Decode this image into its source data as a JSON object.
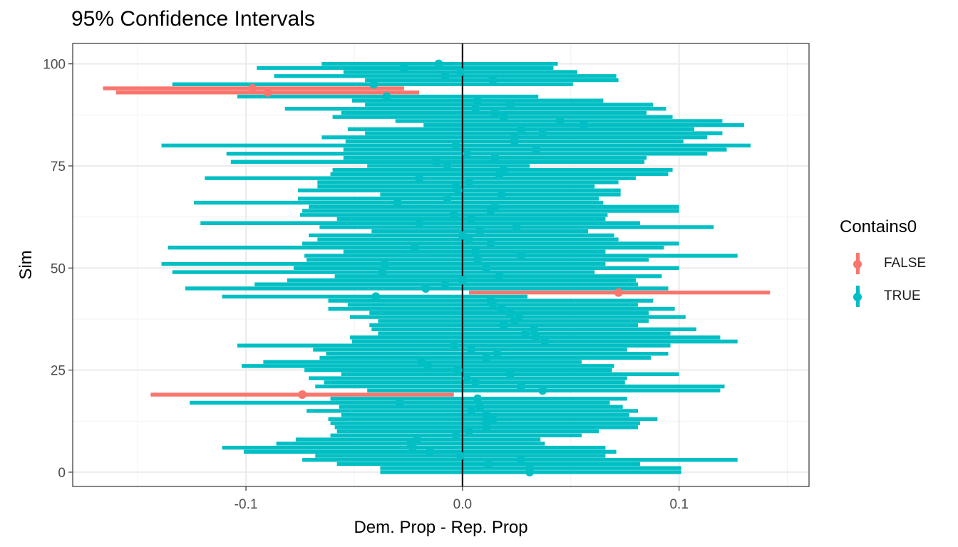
{
  "chart_data": {
    "type": "errorbar",
    "title": "95% Confidence Intervals",
    "xlabel": "Dem. Prop - Rep. Prop",
    "ylabel": "Sim",
    "xlim": [
      -0.18,
      0.16
    ],
    "ylim": [
      -3.5,
      105
    ],
    "x_ticks": [
      -0.1,
      0.0,
      0.1
    ],
    "x_tick_labels": [
      "-0.1",
      "0.0",
      "0.1"
    ],
    "y_ticks": [
      0,
      25,
      50,
      75,
      100
    ],
    "y_tick_labels": [
      "0",
      "25",
      "50",
      "75",
      "100"
    ],
    "vline_x": 0,
    "grid": true,
    "legend": {
      "title": "Contains0",
      "position": "right",
      "entries": [
        {
          "label": "FALSE",
          "color": "#F8766D"
        },
        {
          "label": "TRUE",
          "color": "#00BFC4"
        }
      ]
    },
    "colors": {
      "FALSE": "#F8766D",
      "TRUE": "#00BFC4"
    },
    "series": [
      {
        "name": "FALSE",
        "sims": [
          19,
          44,
          93,
          94
        ],
        "lower": [
          -0.144,
          0.003,
          -0.16,
          -0.166
        ],
        "upper": [
          -0.004,
          0.142,
          -0.02,
          -0.027
        ],
        "estimate": [
          -0.074,
          0.072,
          -0.09,
          -0.097
        ]
      },
      {
        "name": "TRUE",
        "sims": [
          0,
          1,
          2,
          3,
          4,
          5,
          6,
          7,
          8,
          9,
          10,
          11,
          12,
          13,
          14,
          15,
          16,
          17,
          18,
          20,
          21,
          22,
          23,
          24,
          25,
          26,
          27,
          28,
          29,
          30,
          31,
          32,
          33,
          34,
          35,
          36,
          37,
          38,
          39,
          40,
          41,
          42,
          43,
          45,
          46,
          47,
          48,
          49,
          50,
          51,
          52,
          53,
          54,
          55,
          56,
          57,
          58,
          59,
          60,
          61,
          62,
          63,
          64,
          65,
          66,
          67,
          68,
          69,
          70,
          71,
          72,
          73,
          74,
          75,
          76,
          77,
          78,
          79,
          80,
          81,
          82,
          83,
          84,
          85,
          86,
          87,
          88,
          89,
          90,
          91,
          92,
          95,
          96,
          97,
          98,
          99,
          100
        ],
        "lower": [
          -0.038,
          -0.038,
          -0.058,
          -0.074,
          -0.068,
          -0.101,
          -0.111,
          -0.086,
          -0.077,
          -0.061,
          -0.058,
          -0.059,
          -0.061,
          -0.062,
          -0.056,
          -0.072,
          -0.057,
          -0.126,
          -0.061,
          -0.044,
          -0.068,
          -0.064,
          -0.071,
          -0.056,
          -0.073,
          -0.102,
          -0.092,
          -0.066,
          -0.063,
          -0.069,
          -0.104,
          -0.051,
          -0.052,
          -0.039,
          -0.042,
          -0.043,
          -0.039,
          -0.052,
          -0.043,
          -0.062,
          -0.053,
          -0.062,
          -0.111,
          -0.128,
          -0.096,
          -0.081,
          -0.059,
          -0.134,
          -0.078,
          -0.139,
          -0.072,
          -0.073,
          -0.055,
          -0.136,
          -0.074,
          -0.067,
          -0.071,
          -0.042,
          -0.066,
          -0.121,
          -0.058,
          -0.075,
          -0.074,
          -0.071,
          -0.124,
          -0.076,
          -0.038,
          -0.076,
          -0.067,
          -0.067,
          -0.119,
          -0.061,
          -0.06,
          -0.044,
          -0.107,
          -0.055,
          -0.109,
          -0.055,
          -0.139,
          -0.054,
          -0.065,
          -0.045,
          -0.053,
          -0.018,
          -0.031,
          -0.06,
          -0.056,
          -0.082,
          -0.045,
          -0.051,
          -0.104,
          -0.134,
          -0.045,
          -0.087,
          -0.055,
          -0.095,
          -0.065
        ],
        "upper": [
          0.101,
          0.101,
          0.082,
          0.127,
          0.066,
          0.071,
          0.066,
          0.038,
          0.036,
          0.055,
          0.063,
          0.081,
          0.082,
          0.09,
          0.077,
          0.081,
          0.074,
          0.068,
          0.076,
          0.119,
          0.121,
          0.075,
          0.076,
          0.1,
          0.069,
          0.07,
          0.055,
          0.087,
          0.095,
          0.076,
          0.096,
          0.127,
          0.119,
          0.096,
          0.108,
          0.081,
          0.086,
          0.103,
          0.086,
          0.098,
          0.081,
          0.088,
          0.03,
          0.095,
          0.081,
          0.08,
          0.092,
          0.061,
          0.1,
          0.066,
          0.086,
          0.127,
          0.066,
          0.093,
          0.1,
          0.072,
          0.07,
          0.058,
          0.116,
          0.082,
          0.066,
          0.067,
          0.1,
          0.1,
          0.065,
          0.063,
          0.073,
          0.073,
          0.061,
          0.072,
          0.08,
          0.095,
          0.097,
          0.031,
          0.084,
          0.085,
          0.113,
          0.122,
          0.133,
          0.102,
          0.113,
          0.12,
          0.107,
          0.13,
          0.12,
          0.097,
          0.085,
          0.094,
          0.088,
          0.065,
          0.035,
          0.051,
          0.072,
          0.071,
          0.053,
          0.042,
          0.044
        ],
        "estimate": [
          0.031,
          0.031,
          0.012,
          0.027,
          -0.001,
          -0.015,
          -0.023,
          -0.024,
          -0.021,
          -0.003,
          0.003,
          0.011,
          0.011,
          0.014,
          0.011,
          0.004,
          0.008,
          -0.029,
          0.007,
          0.037,
          0.027,
          0.006,
          0.002,
          0.022,
          -0.002,
          -0.016,
          -0.019,
          0.011,
          0.016,
          0.004,
          -0.004,
          0.038,
          0.034,
          0.029,
          0.033,
          0.019,
          0.024,
          0.026,
          0.022,
          0.018,
          0.014,
          0.013,
          -0.04,
          -0.017,
          -0.008,
          0.0,
          0.017,
          -0.037,
          0.011,
          -0.036,
          0.007,
          0.027,
          0.006,
          -0.022,
          0.013,
          0.003,
          0.0,
          0.008,
          0.025,
          -0.02,
          0.004,
          -0.004,
          0.013,
          0.015,
          -0.03,
          -0.007,
          0.018,
          -0.002,
          -0.003,
          0.003,
          -0.02,
          0.017,
          0.019,
          -0.007,
          -0.012,
          0.015,
          0.002,
          0.034,
          -0.003,
          0.024,
          0.024,
          0.037,
          0.027,
          0.056,
          0.045,
          0.019,
          0.015,
          0.006,
          0.022,
          0.007,
          -0.035,
          -0.041,
          0.014,
          -0.008,
          -0.001,
          -0.027,
          -0.011
        ]
      }
    ]
  }
}
